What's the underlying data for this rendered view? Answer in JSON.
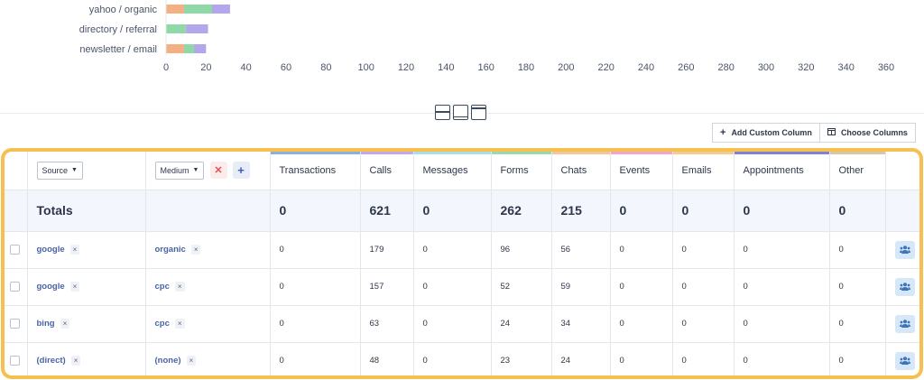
{
  "chart_data": {
    "type": "bar",
    "orientation": "horizontal",
    "stacked": true,
    "categories": [
      "yahoo / organic",
      "directory / referral",
      "newsletter / email"
    ],
    "series": [
      {
        "color": "#f4b083",
        "values": [
          9,
          0,
          9
        ]
      },
      {
        "color": "#8fd9a8",
        "values": [
          14,
          10,
          5
        ]
      },
      {
        "color": "#b3a6ea",
        "values": [
          9,
          11,
          6
        ]
      }
    ],
    "xlim": [
      0,
      360
    ],
    "xticks": [
      0,
      20,
      40,
      60,
      80,
      100,
      120,
      140,
      160,
      180,
      200,
      220,
      240,
      260,
      280,
      300,
      320,
      340,
      360
    ],
    "grid": false,
    "legend": "none"
  },
  "layout_toggles": [
    "split-horizontal",
    "split-bottom",
    "split-top"
  ],
  "toolbar": {
    "add_custom_column": "Add Custom Column",
    "choose_columns": "Choose Columns"
  },
  "table": {
    "source_select": "Source",
    "medium_select": "Medium",
    "remove_symbol": "✕",
    "add_symbol": "+",
    "columns": [
      {
        "label": "Transactions",
        "color": "#8ab0e0"
      },
      {
        "label": "Calls",
        "color": "#c3a7ea"
      },
      {
        "label": "Messages",
        "color": "#a7dde4"
      },
      {
        "label": "Forms",
        "color": "#98dab0"
      },
      {
        "label": "Chats",
        "color": "#f4c49b"
      },
      {
        "label": "Events",
        "color": "#f2a6c9"
      },
      {
        "label": "Emails",
        "color": "#f6c98f"
      },
      {
        "label": "Appointments",
        "color": "#7f7fdc"
      },
      {
        "label": "Other",
        "color": "#d9c5a8"
      }
    ],
    "totals": {
      "label": "Totals",
      "values": [
        "0",
        "621",
        "0",
        "262",
        "215",
        "0",
        "0",
        "0",
        "0"
      ]
    },
    "rows": [
      {
        "source": "google",
        "medium": "organic",
        "values": [
          "0",
          "179",
          "0",
          "96",
          "56",
          "0",
          "0",
          "0",
          "0"
        ]
      },
      {
        "source": "google",
        "medium": "cpc",
        "values": [
          "0",
          "157",
          "0",
          "52",
          "59",
          "0",
          "0",
          "0",
          "0"
        ]
      },
      {
        "source": "bing",
        "medium": "cpc",
        "values": [
          "0",
          "63",
          "0",
          "24",
          "34",
          "0",
          "0",
          "0",
          "0"
        ]
      },
      {
        "source": "(direct)",
        "medium": "(none)",
        "values": [
          "0",
          "48",
          "0",
          "23",
          "24",
          "0",
          "0",
          "0",
          "0"
        ]
      }
    ],
    "chip_symbol": "×"
  },
  "icons": {
    "add": "plus-icon",
    "columns": "columns-icon",
    "people": "people-icon",
    "caret": "caret-down-icon"
  }
}
